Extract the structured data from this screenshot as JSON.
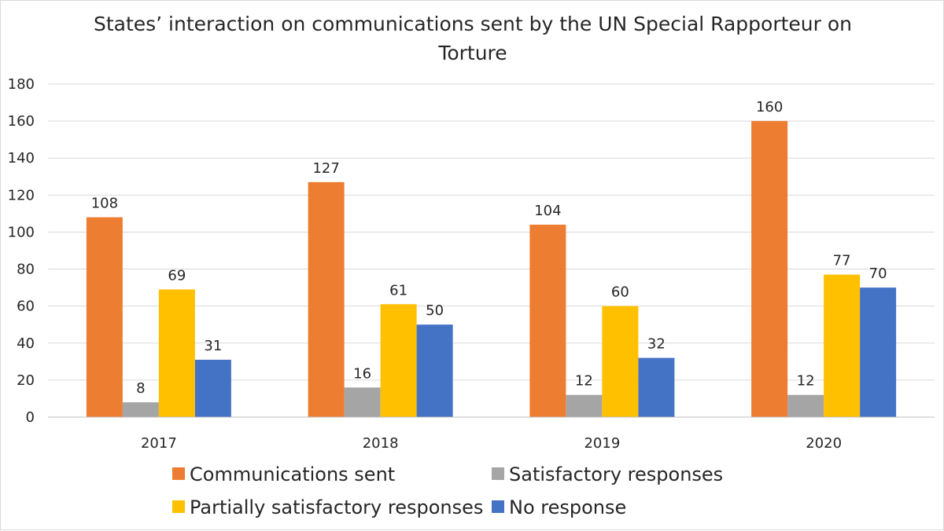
{
  "chart_data": {
    "type": "bar",
    "title": "States’ interaction on communications sent by the UN Special Rapporteur on Torture",
    "title_lines": [
      "States’ interaction on communications sent by the UN Special Rapporteur on",
      "Torture"
    ],
    "xlabel": "",
    "ylabel": "",
    "ylim": [
      0,
      180
    ],
    "yticks": [
      0,
      20,
      40,
      60,
      80,
      100,
      120,
      140,
      160,
      180
    ],
    "grid": true,
    "legend_position": "bottom",
    "categories": [
      "2017",
      "2018",
      "2019",
      "2020"
    ],
    "series": [
      {
        "name": "Communications sent",
        "color": "#ED7D31",
        "values": [
          108,
          127,
          104,
          160
        ]
      },
      {
        "name": "Satisfactory responses",
        "color": "#A5A5A5",
        "values": [
          8,
          16,
          12,
          12
        ]
      },
      {
        "name": "Partially satisfactory responses",
        "color": "#FFC000",
        "values": [
          69,
          61,
          60,
          77
        ]
      },
      {
        "name": "No response",
        "color": "#4472C4",
        "values": [
          31,
          50,
          32,
          70
        ]
      }
    ],
    "gridline_color": "#d9d9d9",
    "axis_color": "#bfbfbf"
  }
}
